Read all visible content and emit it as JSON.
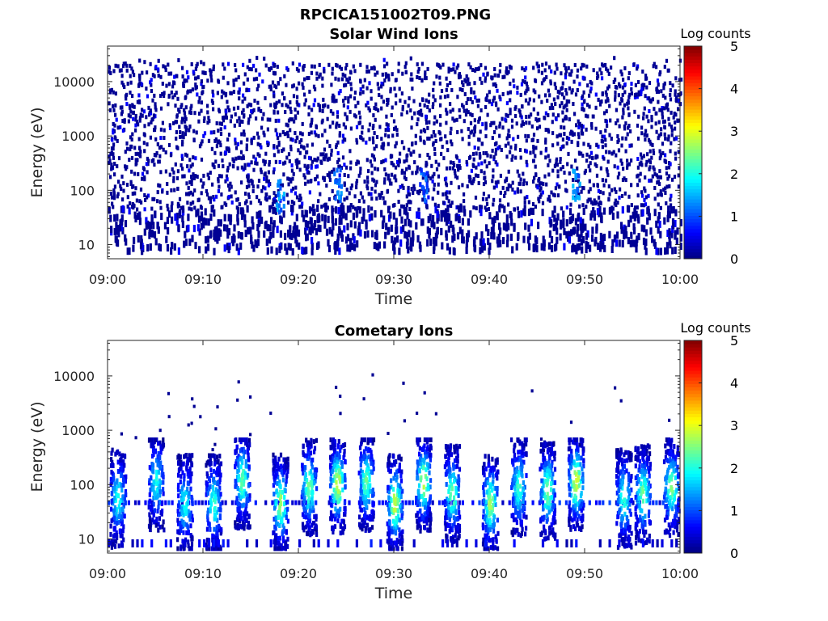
{
  "figure": {
    "title": "RPCICA151002T09.PNG"
  },
  "chart_data": [
    {
      "type": "heatmap",
      "title": "Solar Wind Ions",
      "xlabel": "Time",
      "ylabel": "Energy (eV)",
      "x_ticks": [
        "09:00",
        "09:10",
        "09:20",
        "09:30",
        "09:40",
        "09:50",
        "10:00"
      ],
      "x_range": [
        "09:00",
        "10:00"
      ],
      "y_scale": "log",
      "y_ticks": [
        "10",
        "100",
        "1000",
        "10000"
      ],
      "y_range": [
        5.5,
        45000
      ],
      "colorbar": {
        "label": "Log counts",
        "ticks": [
          "0",
          "1",
          "2",
          "3",
          "4",
          "5"
        ],
        "range": [
          0,
          5
        ],
        "colormap": "jet"
      },
      "description": "Sparse low-count (log counts ~0-0.5) scatter across all energies 10-30000 eV for the full hour; slightly brighter patches (~1-1.8) near 100 eV at ~09:18, 09:24, 09:33, 09:49.",
      "enhancements": [
        {
          "time": "09:18",
          "energy_eV": 70,
          "log_counts": 1.6
        },
        {
          "time": "09:24",
          "energy_eV": 110,
          "log_counts": 1.5
        },
        {
          "time": "09:33",
          "energy_eV": 110,
          "log_counts": 1.3
        },
        {
          "time": "09:49",
          "energy_eV": 110,
          "log_counts": 1.6
        }
      ]
    },
    {
      "type": "heatmap",
      "title": "Cometary Ions",
      "xlabel": "Time",
      "ylabel": "Energy (eV)",
      "x_ticks": [
        "09:00",
        "09:10",
        "09:20",
        "09:30",
        "09:40",
        "09:50",
        "10:00"
      ],
      "x_range": [
        "09:00",
        "10:00"
      ],
      "y_scale": "log",
      "y_ticks": [
        "10",
        "100",
        "1000",
        "10000"
      ],
      "y_range": [
        5.5,
        45000
      ],
      "colorbar": {
        "label": "Log counts",
        "ticks": [
          "0",
          "1",
          "2",
          "3",
          "4",
          "5"
        ],
        "range": [
          0,
          5
        ],
        "colormap": "jet"
      },
      "description": "Quasi-periodic vertical bursts of ions between ~6 and ~500 eV, peaking near 40-120 eV with log counts up to ~2.8; a persistent band near 40 eV; isolated single counts up to ~10000 eV.",
      "bursts": [
        {
          "time": "09:01",
          "peak_energy_eV": 50,
          "peak_log_counts": 1.9
        },
        {
          "time": "09:05",
          "peak_energy_eV": 100,
          "peak_log_counts": 1.8
        },
        {
          "time": "09:08",
          "peak_energy_eV": 40,
          "peak_log_counts": 1.8
        },
        {
          "time": "09:11",
          "peak_energy_eV": 40,
          "peak_log_counts": 2.0
        },
        {
          "time": "09:14",
          "peak_energy_eV": 110,
          "peak_log_counts": 2.2
        },
        {
          "time": "09:18",
          "peak_energy_eV": 40,
          "peak_log_counts": 2.5
        },
        {
          "time": "09:21",
          "peak_energy_eV": 80,
          "peak_log_counts": 2.3
        },
        {
          "time": "09:24",
          "peak_energy_eV": 90,
          "peak_log_counts": 2.7
        },
        {
          "time": "09:27",
          "peak_energy_eV": 100,
          "peak_log_counts": 2.2
        },
        {
          "time": "09:30",
          "peak_energy_eV": 40,
          "peak_log_counts": 2.7
        },
        {
          "time": "09:33",
          "peak_energy_eV": 100,
          "peak_log_counts": 2.6
        },
        {
          "time": "09:36",
          "peak_energy_eV": 60,
          "peak_log_counts": 2.3
        },
        {
          "time": "09:40",
          "peak_energy_eV": 40,
          "peak_log_counts": 2.5
        },
        {
          "time": "09:43",
          "peak_energy_eV": 80,
          "peak_log_counts": 2.0
        },
        {
          "time": "09:46",
          "peak_energy_eV": 70,
          "peak_log_counts": 2.4
        },
        {
          "time": "09:49",
          "peak_energy_eV": 100,
          "peak_log_counts": 2.8
        },
        {
          "time": "09:54",
          "peak_energy_eV": 50,
          "peak_log_counts": 2.0
        },
        {
          "time": "09:56",
          "peak_energy_eV": 60,
          "peak_log_counts": 2.3
        },
        {
          "time": "09:59",
          "peak_energy_eV": 80,
          "peak_log_counts": 2.3
        }
      ]
    }
  ]
}
